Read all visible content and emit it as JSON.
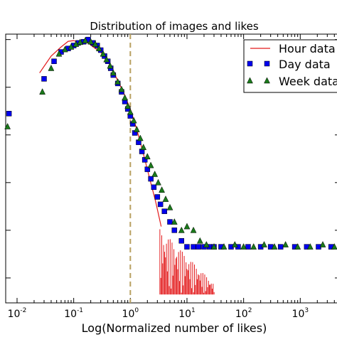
{
  "chart_data": {
    "type": "scatter",
    "title": "Distribution of images and likes",
    "xlabel": "Log(Normalized number of likes)",
    "ylabel": "",
    "x_scale": "log",
    "y_scale": "log",
    "xlim": [
      0.0063,
      5000
    ],
    "ylim": [
      3e-06,
      1.3
    ],
    "x_ticks": [
      {
        "base": "10",
        "exp": "-2",
        "value": 0.01
      },
      {
        "base": "10",
        "exp": "-1",
        "value": 0.1
      },
      {
        "base": "10",
        "exp": "0",
        "value": 1
      },
      {
        "base": "10",
        "exp": "1",
        "value": 10
      },
      {
        "base": "10",
        "exp": "2",
        "value": 100
      },
      {
        "base": "10",
        "exp": "3",
        "value": 1000
      }
    ],
    "vline": {
      "x": 1,
      "color": "#b8a060",
      "style": "dashed"
    },
    "legend_position": "top-right",
    "series": [
      {
        "name": "Hour data",
        "marker": "line",
        "color": "#e31a1c",
        "x": [
          0.025,
          0.04,
          0.06,
          0.08,
          0.1,
          0.13,
          0.17,
          0.22,
          0.3,
          0.4,
          0.55,
          0.75,
          1.0,
          1.3,
          1.7,
          2.2,
          2.8,
          3.5
        ],
        "y": [
          0.2,
          0.45,
          0.7,
          0.92,
          0.95,
          0.85,
          0.9,
          0.7,
          0.55,
          0.35,
          0.17,
          0.08,
          0.035,
          0.013,
          0.004,
          0.0012,
          0.0004,
          0.00012
        ]
      },
      {
        "name": "Day data",
        "marker": "square",
        "color": "#0000ee",
        "x": [
          0.0072,
          0.03,
          0.045,
          0.06,
          0.08,
          0.1,
          0.12,
          0.15,
          0.18,
          0.22,
          0.26,
          0.3,
          0.35,
          0.4,
          0.45,
          0.5,
          0.6,
          0.7,
          0.8,
          0.9,
          1.0,
          1.1,
          1.2,
          1.4,
          1.6,
          1.8,
          2.0,
          2.3,
          2.6,
          3.0,
          3.4,
          4.0,
          5,
          6,
          8,
          10,
          13,
          16,
          20,
          25,
          30,
          40,
          60,
          80,
          120,
          200,
          300,
          450,
          800,
          1300,
          2100,
          3500
        ],
        "y": [
          0.028,
          0.15,
          0.35,
          0.55,
          0.65,
          0.75,
          0.85,
          0.9,
          1.0,
          0.85,
          0.75,
          0.6,
          0.45,
          0.35,
          0.25,
          0.18,
          0.12,
          0.08,
          0.05,
          0.035,
          0.025,
          0.017,
          0.011,
          0.007,
          0.0045,
          0.003,
          0.0019,
          0.0012,
          0.0008,
          0.0005,
          0.00035,
          0.00025,
          0.00015,
          0.0001,
          6e-05,
          4.5e-05,
          4.5e-05,
          4.5e-05,
          4.5e-05,
          4.5e-05,
          4.5e-05,
          4.5e-05,
          4.5e-05,
          4.5e-05,
          4.5e-05,
          4.5e-05,
          4.5e-05,
          4.5e-05,
          4.5e-05,
          4.5e-05,
          4.5e-05,
          4.5e-05
        ]
      },
      {
        "name": "Week data",
        "marker": "triangle",
        "color": "#1a7a1a",
        "x": [
          0.0068,
          0.028,
          0.04,
          0.055,
          0.07,
          0.09,
          0.11,
          0.13,
          0.16,
          0.2,
          0.24,
          0.28,
          0.33,
          0.38,
          0.44,
          0.5,
          0.6,
          0.7,
          0.8,
          0.9,
          1.0,
          1.15,
          1.3,
          1.5,
          1.7,
          2.0,
          2.3,
          2.7,
          3.1,
          3.6,
          4.2,
          5,
          6,
          8,
          10,
          13,
          17,
          22,
          30,
          45,
          70,
          100,
          150,
          230,
          350,
          550,
          900,
          1500,
          2500,
          4000
        ],
        "y": [
          0.015,
          0.08,
          0.25,
          0.5,
          0.62,
          0.7,
          0.8,
          0.88,
          0.95,
          0.9,
          0.8,
          0.65,
          0.5,
          0.38,
          0.28,
          0.2,
          0.13,
          0.09,
          0.06,
          0.04,
          0.03,
          0.02,
          0.013,
          0.0085,
          0.0055,
          0.0035,
          0.0023,
          0.0015,
          0.001,
          0.0007,
          0.00045,
          0.0003,
          0.00015,
          0.0001,
          0.00012,
          0.0001,
          6e-05,
          5e-05,
          4.5e-05,
          4.5e-05,
          5e-05,
          4.5e-05,
          4.5e-05,
          5e-05,
          4.5e-05,
          5e-05,
          4.5e-05,
          4.5e-05,
          5e-05,
          4.5e-05
        ]
      }
    ]
  }
}
